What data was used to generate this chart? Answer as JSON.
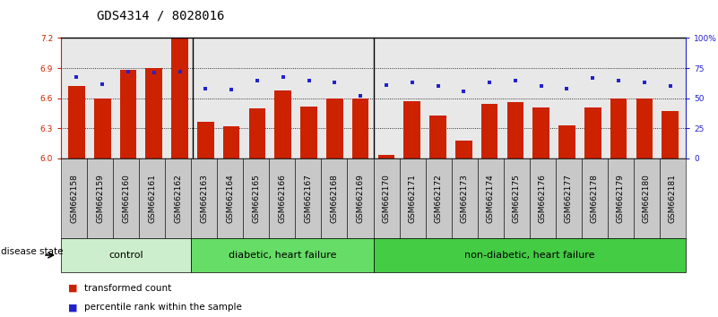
{
  "title": "GDS4314 / 8028016",
  "samples": [
    "GSM662158",
    "GSM662159",
    "GSM662160",
    "GSM662161",
    "GSM662162",
    "GSM662163",
    "GSM662164",
    "GSM662165",
    "GSM662166",
    "GSM662167",
    "GSM662168",
    "GSM662169",
    "GSM662170",
    "GSM662171",
    "GSM662172",
    "GSM662173",
    "GSM662174",
    "GSM662175",
    "GSM662176",
    "GSM662177",
    "GSM662178",
    "GSM662179",
    "GSM662180",
    "GSM662181"
  ],
  "bar_values": [
    6.72,
    6.6,
    6.88,
    6.9,
    7.2,
    6.37,
    6.32,
    6.5,
    6.68,
    6.52,
    6.6,
    6.6,
    6.04,
    6.57,
    6.43,
    6.18,
    6.54,
    6.56,
    6.51,
    6.33,
    6.51,
    6.6,
    6.6,
    6.47
  ],
  "percentile_values": [
    68,
    62,
    72,
    71,
    72,
    58,
    57,
    65,
    68,
    65,
    63,
    52,
    61,
    63,
    60,
    56,
    63,
    65,
    60,
    58,
    67,
    65,
    63,
    60
  ],
  "group_dividers": [
    5,
    12
  ],
  "group_configs": [
    {
      "label": "control",
      "start": 0,
      "end": 5,
      "color": "#CCEECC"
    },
    {
      "label": "diabetic, heart failure",
      "start": 5,
      "end": 12,
      "color": "#66DD66"
    },
    {
      "label": "non-diabetic, heart failure",
      "start": 12,
      "end": 24,
      "color": "#44CC44"
    }
  ],
  "ylim_left": [
    6.0,
    7.2
  ],
  "ylim_right": [
    0,
    100
  ],
  "yticks_left": [
    6.0,
    6.3,
    6.6,
    6.9,
    7.2
  ],
  "yticks_right": [
    0,
    25,
    50,
    75,
    100
  ],
  "ytick_right_labels": [
    "0",
    "25",
    "50",
    "75",
    "100%"
  ],
  "bar_color": "#CC2200",
  "dot_color": "#2222CC",
  "plot_bg_color": "#E8E8E8",
  "xtick_bg_color": "#C8C8C8",
  "title_fontsize": 10,
  "tick_fontsize": 6.5,
  "group_fontsize": 8,
  "legend_fontsize": 7.5,
  "disease_state_label": "disease state",
  "legend_bar_label": "transformed count",
  "legend_dot_label": "percentile rank within the sample"
}
